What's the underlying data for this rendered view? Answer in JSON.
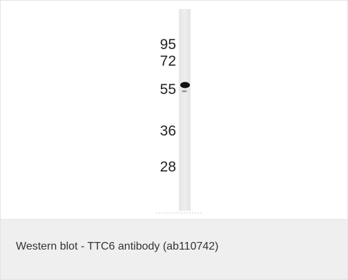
{
  "figure": {
    "markers": [
      "95",
      "72",
      "55",
      "36",
      "28"
    ],
    "caption": "Western blot - TTC6 antibody (ab110742)"
  }
}
